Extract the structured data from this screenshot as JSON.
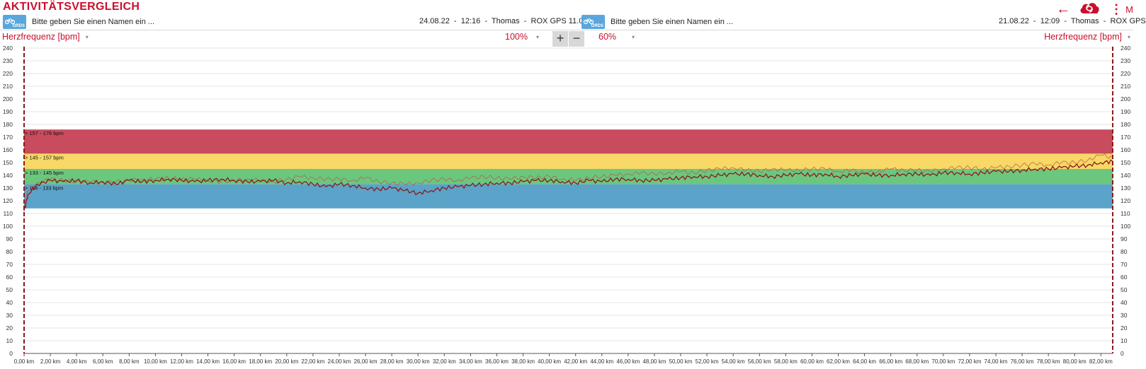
{
  "header": {
    "title": "AKTIVITÄTSVERGLEICH",
    "more_label": "M",
    "icons": [
      "back-arrow-icon",
      "cloud-sync-icon",
      "more-vertical-icon"
    ]
  },
  "activity_left": {
    "logo_text": "ORDS",
    "name": "Bitte geben Sie einen Namen ein ...",
    "meta": "24.08.22  -  12:16  -  Thomas  -  ROX GPS 11.0"
  },
  "activity_right": {
    "logo_text": "ORDS",
    "name": "Bitte geben Sie einen Namen ein ...",
    "meta": "21.08.22  -  12:09  -  Thomas  -  ROX GPS"
  },
  "controls": {
    "left_metric": "Herzfrequenz [bpm]",
    "right_metric": "Herzfrequenz [bpm]",
    "zoom_value": "100%",
    "zoom_in": "+",
    "zoom_out": "−",
    "opacity_value": "60%"
  },
  "colors": {
    "accent": "#c8102e",
    "zone_red": "#c84c5e",
    "zone_yellow": "#f8d866",
    "zone_green": "#6cc77e",
    "zone_blue": "#5ba3c8",
    "line_primary": "#8a1a1a",
    "line_secondary": "#b35a4a"
  },
  "chart_data": {
    "type": "line",
    "title": "",
    "xlabel": "",
    "ylabel": "Herzfrequenz [bpm]",
    "ylim": [
      0,
      240
    ],
    "xlim": [
      0,
      82.9
    ],
    "yticks": [
      0,
      10,
      20,
      30,
      40,
      50,
      60,
      70,
      80,
      90,
      100,
      110,
      120,
      130,
      140,
      150,
      160,
      170,
      180,
      190,
      200,
      210,
      220,
      230,
      240
    ],
    "xtick_labels": [
      "0,00 km",
      "2,00 km",
      "4,00 km",
      "6,00 km",
      "8,00 km",
      "10,00 km",
      "12,00 km",
      "14,00 km",
      "16,00 km",
      "18,00 km",
      "20,00 km",
      "22,00 km",
      "24,00 km",
      "26,00 km",
      "28,00 km",
      "30,00 km",
      "32,00 km",
      "34,00 km",
      "36,00 km",
      "38,00 km",
      "40,00 km",
      "42,00 km",
      "44,00 km",
      "46,00 km",
      "48,00 km",
      "50,00 km",
      "52,00 km",
      "54,00 km",
      "56,00 km",
      "58,00 km",
      "60,00 km",
      "62,00 km",
      "64,00 km",
      "66,00 km",
      "68,00 km",
      "70,00 km",
      "72,00 km",
      "74,00 km",
      "76,00 km",
      "78,00 km",
      "80,00 km",
      "82,00 km"
    ],
    "grid": true,
    "zones": [
      {
        "label": "157 - 176 bpm",
        "from": 157,
        "to": 176,
        "color": "#c84c5e"
      },
      {
        "label": "145 - 157 bpm",
        "from": 145,
        "to": 157,
        "color": "#f8d866"
      },
      {
        "label": "133 - 145 bpm",
        "from": 133,
        "to": 145,
        "color": "#6cc77e"
      },
      {
        "label": "114 - 133 bpm",
        "from": 114,
        "to": 133,
        "color": "#5ba3c8"
      }
    ],
    "series": [
      {
        "color": "#8a1a1a",
        "x": [
          0,
          0.3,
          1,
          2,
          3,
          4,
          5,
          6,
          7,
          8,
          9,
          10,
          11,
          12,
          13,
          14,
          15,
          16,
          17,
          18,
          19,
          20,
          21,
          22,
          23,
          24,
          25,
          26,
          27,
          28,
          29,
          30,
          31,
          32,
          33,
          34,
          35,
          36,
          37,
          38,
          39,
          40,
          41,
          42,
          43,
          44,
          45,
          46,
          47,
          48,
          49,
          50,
          51,
          52,
          53,
          54,
          55,
          56,
          57,
          58,
          59,
          60,
          61,
          62,
          63,
          64,
          65,
          66,
          67,
          68,
          69,
          70,
          71,
          72,
          73,
          74,
          75,
          76,
          77,
          78,
          79,
          80,
          81,
          82,
          82.9
        ],
        "y": [
          112,
          125,
          133,
          136,
          135,
          136,
          134,
          135,
          133,
          136,
          135,
          136,
          137,
          136,
          135,
          136,
          137,
          136,
          135,
          135,
          136,
          134,
          135,
          133,
          131,
          133,
          132,
          130,
          129,
          130,
          128,
          126,
          128,
          130,
          131,
          132,
          133,
          134,
          134,
          135,
          136,
          136,
          135,
          134,
          136,
          135,
          137,
          137,
          136,
          136,
          137,
          138,
          139,
          139,
          140,
          141,
          141,
          140,
          139,
          140,
          141,
          140,
          141,
          139,
          140,
          141,
          140,
          140,
          141,
          141,
          140,
          142,
          142,
          141,
          142,
          143,
          143,
          144,
          145,
          145,
          146,
          147,
          148,
          150,
          151
        ]
      },
      {
        "color": "#b35a4a",
        "x": [
          0,
          0.3,
          1,
          2,
          3,
          4,
          5,
          6,
          7,
          8,
          9,
          10,
          11,
          12,
          13,
          14,
          15,
          16,
          17,
          18,
          19,
          20,
          21,
          22,
          23,
          24,
          25,
          26,
          27,
          28,
          29,
          30,
          31,
          32,
          33,
          34,
          35,
          36,
          37,
          38,
          39,
          40,
          41,
          42,
          43,
          44,
          45,
          46,
          47,
          48,
          49,
          50,
          51,
          52,
          53,
          54,
          55,
          56,
          57,
          58,
          59,
          60,
          61,
          62,
          63,
          64,
          65,
          66,
          67,
          68,
          69,
          70,
          71,
          72,
          73,
          74,
          75,
          76,
          77,
          78,
          79,
          80,
          81,
          82,
          82.9
        ],
        "y": [
          116,
          128,
          134,
          137,
          136,
          135,
          135,
          134,
          135,
          136,
          137,
          137,
          138,
          137,
          137,
          136,
          135,
          136,
          137,
          136,
          135,
          137,
          139,
          138,
          137,
          137,
          136,
          138,
          135,
          134,
          133,
          134,
          136,
          137,
          136,
          138,
          139,
          138,
          137,
          139,
          138,
          139,
          137,
          136,
          138,
          139,
          140,
          141,
          142,
          141,
          142,
          143,
          142,
          144,
          145,
          146,
          144,
          143,
          145,
          144,
          144,
          145,
          145,
          143,
          144,
          142,
          143,
          145,
          144,
          144,
          143,
          145,
          146,
          146,
          145,
          146,
          147,
          148,
          149,
          148,
          150,
          150,
          152,
          156,
          154
        ]
      }
    ]
  }
}
